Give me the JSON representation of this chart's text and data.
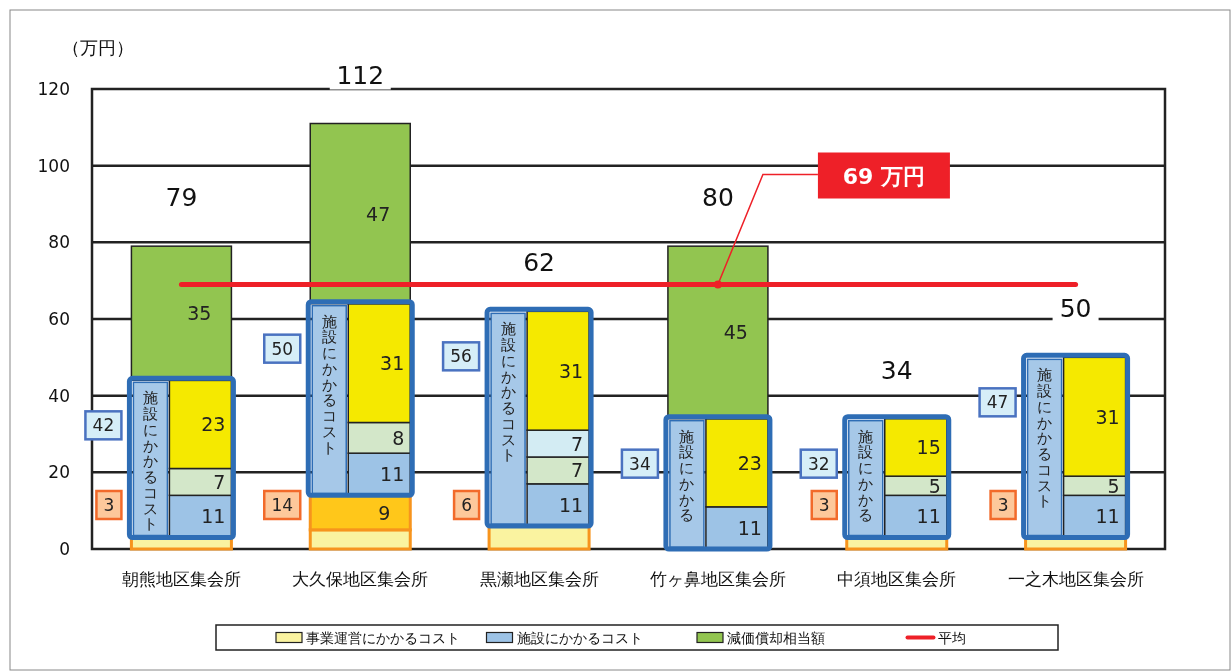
{
  "chart_data": {
    "type": "bar",
    "stacked": true,
    "ylabel": "（万円）",
    "categories": [
      "朝熊地区集会所",
      "大久保地区集会所",
      "黒瀬地区集会所",
      "竹ヶ鼻地区集会所",
      "中須地区集会所",
      "一之木地区集会所"
    ],
    "ylim": [
      0,
      120
    ],
    "yticks": [
      0,
      20,
      40,
      60,
      80,
      100,
      120
    ],
    "grid": "y",
    "legend": "bottom",
    "series": [
      {
        "name": "事業運営にかかるコスト",
        "color": "#faf3a0",
        "values": [
          3,
          5,
          6,
          null,
          3,
          3
        ],
        "value_labels": [
          null,
          null,
          null,
          null,
          null,
          null
        ]
      },
      {
        "color": "#ffc71a",
        "values": [
          null,
          9,
          null,
          null,
          null,
          null
        ],
        "value_labels": [
          null,
          "9",
          null,
          null,
          null,
          null
        ]
      },
      {
        "name": "施設にかかるコスト",
        "color": "#9dc3e6",
        "values": [
          11,
          11,
          11,
          11,
          11,
          11
        ],
        "value_labels": [
          "11",
          "11",
          "11",
          "11",
          "11",
          "11"
        ]
      },
      {
        "color": "#d3e7c9",
        "values": [
          7,
          8,
          7,
          null,
          5,
          5
        ],
        "value_labels": [
          "7",
          "8",
          "7",
          null,
          "5",
          "5"
        ]
      },
      {
        "color": "#d3ecf3",
        "values": [
          null,
          null,
          7,
          null,
          null,
          null
        ],
        "value_labels": [
          null,
          null,
          "7",
          null,
          null,
          null
        ]
      },
      {
        "color": "#f5e900",
        "values": [
          23,
          31,
          31,
          23,
          15,
          31
        ],
        "value_labels": [
          "23",
          "31",
          "31",
          "23",
          "15",
          "31"
        ]
      },
      {
        "name": "減価償却相当額",
        "color": "#92c550",
        "values": [
          35,
          47,
          null,
          45,
          null,
          null
        ],
        "value_labels": [
          "35",
          "47",
          null,
          "45",
          null,
          null
        ]
      },
      {
        "name": "平均",
        "type": "line",
        "color": "#ee2028",
        "values": [
          69,
          69,
          69,
          69,
          69,
          69
        ]
      }
    ],
    "totals": [
      "79",
      "112",
      "62",
      "80",
      "34",
      "50"
    ],
    "annotations": [
      {
        "text": "69 万円",
        "x": "竹ヶ鼻地区集会所",
        "y": 69
      },
      "42",
      "3",
      "施設にかかるコスト",
      "50",
      "14",
      "施設にかかるコスト",
      "56",
      "6",
      "施設にかかるコスト",
      "34",
      "施設にかかる",
      "32",
      "3",
      "施設にかかる",
      "47",
      "3",
      "施設にかかるコスト"
    ]
  }
}
